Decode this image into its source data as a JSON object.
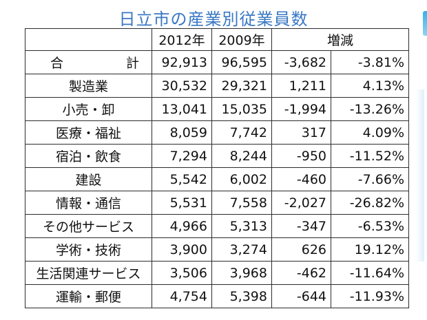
{
  "title": "日立市の産業別従業員数",
  "colors": {
    "title": "#3a78c4",
    "negative": "#e52b2b",
    "border": "#2b2b2b"
  },
  "table": {
    "headers": {
      "label": "",
      "y2012": "2012年",
      "y2009": "2009年",
      "change": "増減"
    },
    "rows": [
      {
        "label": "合　計",
        "y2012": "92,913",
        "y2009": "96,595",
        "diff": "-3,682",
        "pct": "-3.81%"
      },
      {
        "label": "製造業",
        "y2012": "30,532",
        "y2009": "29,321",
        "diff": "1,211",
        "pct": "4.13%"
      },
      {
        "label": "小売・卸",
        "y2012": "13,041",
        "y2009": "15,035",
        "diff": "-1,994",
        "pct": "-13.26%"
      },
      {
        "label": "医療・福祉",
        "y2012": "8,059",
        "y2009": "7,742",
        "diff": "317",
        "pct": "4.09%"
      },
      {
        "label": "宿泊・飲食",
        "y2012": "7,294",
        "y2009": "8,244",
        "diff": "-950",
        "pct": "-11.52%"
      },
      {
        "label": "建設",
        "y2012": "5,542",
        "y2009": "6,002",
        "diff": "-460",
        "pct": "-7.66%"
      },
      {
        "label": "情報・通信",
        "y2012": "5,531",
        "y2009": "7,558",
        "diff": "-2,027",
        "pct": "-26.82%"
      },
      {
        "label": "その他サービス",
        "y2012": "4,966",
        "y2009": "5,313",
        "diff": "-347",
        "pct": "-6.53%"
      },
      {
        "label": "学術・技術",
        "y2012": "3,900",
        "y2009": "3,274",
        "diff": "626",
        "pct": "19.12%"
      },
      {
        "label": "生活関連サービス",
        "y2012": "3,506",
        "y2009": "3,968",
        "diff": "-462",
        "pct": "-11.64%"
      },
      {
        "label": "運輸・郵便",
        "y2012": "4,754",
        "y2009": "5,398",
        "diff": "-644",
        "pct": "-11.93%"
      }
    ]
  }
}
